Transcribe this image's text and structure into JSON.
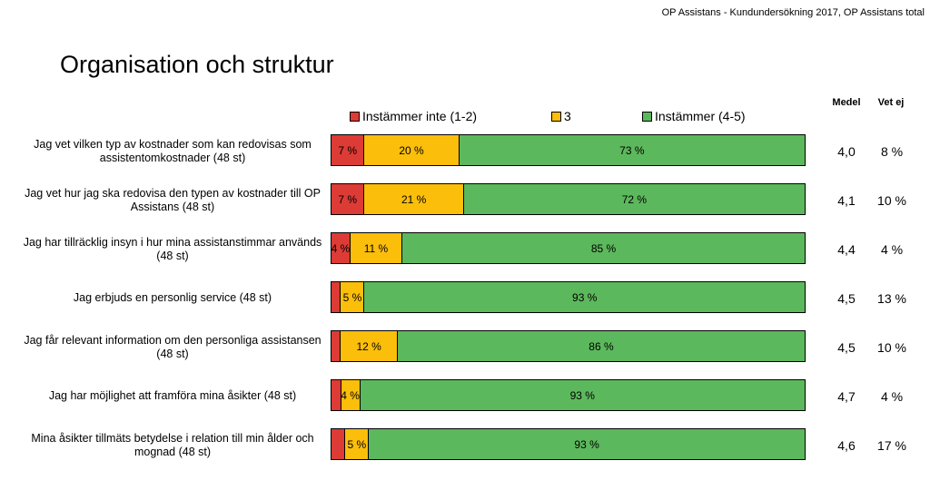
{
  "header": {
    "subtitle": "OP Assistans - Kundundersökning 2017, OP Assistans total"
  },
  "title": "Organisation och struktur",
  "legend": [
    {
      "label": "Instämmer inte (1-2)",
      "color": "#dc3b36"
    },
    {
      "label": "3",
      "color": "#fbbe0a"
    },
    {
      "label": "Instämmer (4-5)",
      "color": "#5cb85c"
    }
  ],
  "columns": {
    "mean": "Medel",
    "dont_know": "Vet ej"
  },
  "chart_data": {
    "type": "bar",
    "orientation": "horizontal",
    "stacked": true,
    "percent_scale": [
      0,
      100
    ],
    "categories": [
      "Jag vet vilken typ av kostnader som kan redovisas som assistentomkostnader (48 st)",
      "Jag vet hur jag ska redovisa den typen av kostnader till OP Assistans (48 st)",
      "Jag har tillräcklig insyn i hur mina assistanstimmar används (48 st)",
      "Jag erbjuds en personlig service (48 st)",
      "Jag får relevant information om den personliga assistansen (48 st)",
      "Jag har möjlighet att framföra mina åsikter (48 st)",
      "Mina åsikter tillmäts betydelse i relation till min ålder och mognad (48 st)"
    ],
    "series": [
      {
        "name": "Instämmer inte (1-2)",
        "color": "#dc3b36",
        "values": [
          7,
          7,
          4,
          2,
          2,
          2,
          3
        ],
        "labels": [
          "7 %",
          "7 %",
          "4 %",
          "",
          "",
          "",
          ""
        ]
      },
      {
        "name": "3",
        "color": "#fbbe0a",
        "values": [
          20,
          21,
          11,
          5,
          12,
          4,
          5
        ],
        "labels": [
          "20 %",
          "21 %",
          "11 %",
          "5 %",
          "12 %",
          "4 %",
          "5 %"
        ]
      },
      {
        "name": "Instämmer (4-5)",
        "color": "#5cb85c",
        "values": [
          73,
          72,
          85,
          93,
          86,
          93,
          93
        ],
        "labels": [
          "73 %",
          "72 %",
          "85 %",
          "93 %",
          "86 %",
          "93 %",
          "93 %"
        ]
      }
    ],
    "mean": [
      "4,0",
      "4,1",
      "4,4",
      "4,5",
      "4,5",
      "4,7",
      "4,6"
    ],
    "dont_know": [
      "8 %",
      "10 %",
      "4 %",
      "13 %",
      "10 %",
      "4 %",
      "17 %"
    ],
    "legend_position": "top"
  }
}
